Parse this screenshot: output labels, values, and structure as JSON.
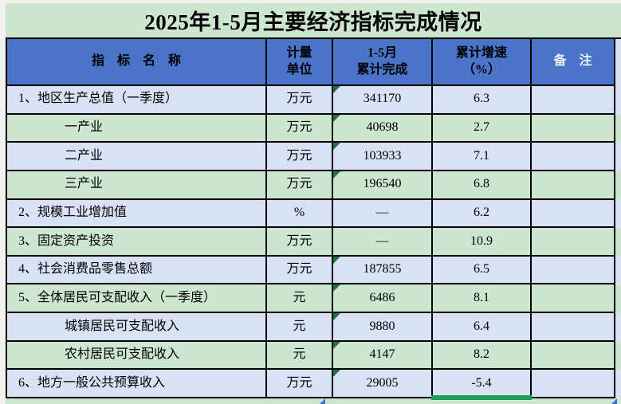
{
  "title": "2025年1-5月主要经济指标完成情况",
  "table": {
    "headers": {
      "indicator": "指　标　名　称",
      "unit": "计量\n单位",
      "completed": "1-5月\n累计完成",
      "growth": "累计增速\n（%）",
      "remark": "备　注"
    },
    "rows": [
      {
        "indicator": "1、地区生产总值（一季度）",
        "unit": "万元",
        "completed": "341170",
        "growth": "6.3",
        "remark": "",
        "indent": false,
        "marker": true
      },
      {
        "indicator": "一产业",
        "unit": "万元",
        "completed": "40698",
        "growth": "2.7",
        "remark": "",
        "indent": true,
        "marker": true
      },
      {
        "indicator": "二产业",
        "unit": "万元",
        "completed": "103933",
        "growth": "7.1",
        "remark": "",
        "indent": true,
        "marker": true
      },
      {
        "indicator": "三产业",
        "unit": "万元",
        "completed": "196540",
        "growth": "6.8",
        "remark": "",
        "indent": true,
        "marker": true
      },
      {
        "indicator": "2、规模工业增加值",
        "unit": "%",
        "completed": "—",
        "growth": "6.2",
        "remark": "",
        "indent": false,
        "marker": false
      },
      {
        "indicator": "3、固定资产投资",
        "unit": "万元",
        "completed": "—",
        "growth": "10.9",
        "remark": "",
        "indent": false,
        "marker": false
      },
      {
        "indicator": "4、社会消费品零售总额",
        "unit": "万元",
        "completed": "187855",
        "growth": "6.5",
        "remark": "",
        "indent": false,
        "marker": true
      },
      {
        "indicator": "5、全体居民可支配收入（一季度）",
        "unit": "元",
        "completed": "6486",
        "growth": "8.1",
        "remark": "",
        "indent": false,
        "marker": true
      },
      {
        "indicator": "城镇居民可支配收入",
        "unit": "元",
        "completed": "9880",
        "growth": "6.4",
        "remark": "",
        "indent": true,
        "marker": true
      },
      {
        "indicator": "农村居民可支配收入",
        "unit": "元",
        "completed": "4147",
        "growth": "8.2",
        "remark": "",
        "indent": true,
        "marker": true
      },
      {
        "indicator": "6、地方一般公共预算收入",
        "unit": "万元",
        "completed": "29005",
        "growth": "-5.4",
        "remark": "",
        "indent": false,
        "marker": true
      }
    ]
  },
  "colors": {
    "title_green": "#cde6d0",
    "row_green": "#cce6d0",
    "row_lavender": "#d9e1f4",
    "header_blue": "#4a74c8",
    "flag_green": "#217346",
    "selection_green": "#1e9e5a",
    "artifact_blue": "#4472c4",
    "grid_black": "#000000",
    "page_bg": "#f3f2ee"
  }
}
